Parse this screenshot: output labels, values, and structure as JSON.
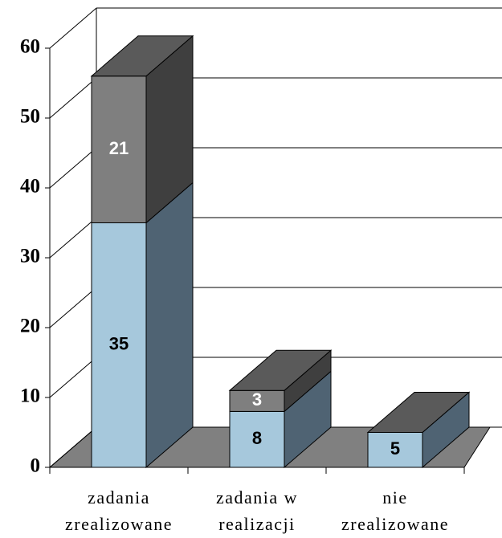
{
  "chart_data": {
    "type": "bar3d_stacked",
    "categories": [
      "zadania zrealizowane",
      "zadania w realizacji",
      "nie zrealizowane"
    ],
    "series": [
      {
        "color": "#a6c8dc",
        "side_color": "#4f6373",
        "values": [
          35,
          8,
          5
        ]
      },
      {
        "color": "#7f7f7f",
        "side_color": "#3f3f3f",
        "values": [
          21,
          3,
          null
        ]
      }
    ],
    "top_color": "#5a5a5a",
    "label_colors": [
      "#000000",
      "#ffffff"
    ],
    "floor_color": "#808080",
    "ylim": [
      0,
      60
    ],
    "yticks": [
      0,
      10,
      20,
      30,
      40,
      50,
      60
    ],
    "grid": true
  }
}
